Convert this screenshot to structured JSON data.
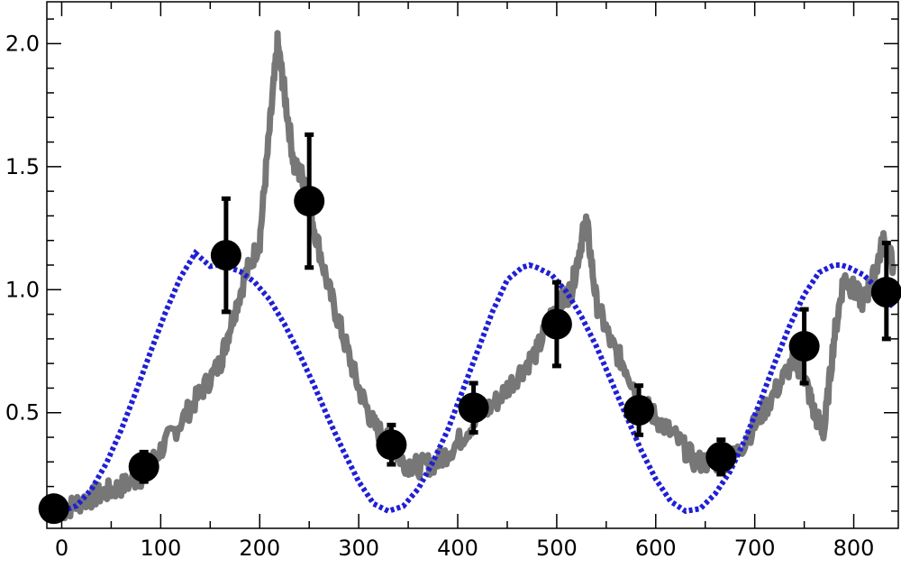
{
  "chart_data": {
    "type": "line",
    "title": "",
    "xlabel": "",
    "ylabel": "",
    "xlim": [
      -15,
      845
    ],
    "ylim": [
      0.03,
      2.17
    ],
    "x_ticks": [
      0,
      100,
      200,
      300,
      400,
      500,
      600,
      700,
      800
    ],
    "x_tick_labels": [
      "0",
      "100",
      "200",
      "300",
      "400",
      "500",
      "600",
      "700",
      "800"
    ],
    "y_ticks": [
      0.5,
      1.0,
      1.5,
      2.0
    ],
    "y_tick_labels": [
      "0.5",
      "1.0",
      "1.5",
      "2.0"
    ],
    "grid": false,
    "series": [
      {
        "kind": "noisy-line",
        "color": "#777777",
        "x": [
          0,
          20,
          40,
          60,
          80,
          100,
          120,
          140,
          160,
          170,
          185,
          200,
          210,
          218,
          225,
          235,
          245,
          255,
          270,
          285,
          300,
          315,
          330,
          345,
          360,
          380,
          400,
          420,
          440,
          460,
          480,
          495,
          505,
          515,
          525,
          530,
          540,
          555,
          570,
          585,
          600,
          620,
          640,
          660,
          680,
          700,
          720,
          740,
          750,
          760,
          770,
          780,
          790,
          800,
          810,
          820,
          830,
          840
        ],
        "y": [
          0.1,
          0.14,
          0.17,
          0.2,
          0.24,
          0.35,
          0.46,
          0.58,
          0.7,
          0.85,
          1.05,
          1.2,
          1.65,
          2.0,
          1.8,
          1.5,
          1.45,
          1.25,
          1.0,
          0.8,
          0.6,
          0.45,
          0.38,
          0.3,
          0.28,
          0.3,
          0.38,
          0.48,
          0.55,
          0.65,
          0.75,
          0.9,
          0.95,
          1.0,
          1.2,
          1.28,
          0.95,
          0.78,
          0.68,
          0.55,
          0.48,
          0.4,
          0.3,
          0.3,
          0.32,
          0.45,
          0.58,
          0.72,
          0.65,
          0.5,
          0.42,
          0.8,
          1.05,
          1.0,
          0.95,
          1.05,
          1.2,
          1.1
        ]
      },
      {
        "kind": "dotted-line",
        "color": "#1f1fd6",
        "x": [
          0,
          15,
          30,
          45,
          60,
          75,
          90,
          105,
          120,
          135,
          150,
          157.5,
          165,
          180,
          195,
          210,
          225,
          240,
          255,
          270,
          285,
          300,
          315,
          330,
          345,
          360,
          375,
          390,
          405,
          420,
          435,
          450,
          465,
          472.5,
          480,
          495,
          510,
          525,
          540,
          555,
          570,
          585,
          600,
          615,
          630,
          645,
          660,
          675,
          690,
          705,
          720,
          735,
          750,
          765,
          780,
          787.5,
          795,
          810,
          825,
          840
        ],
        "y": [
          0.1,
          0.122,
          0.188,
          0.293,
          0.429,
          0.585,
          0.75,
          0.91,
          1.05,
          1.149,
          1.095,
          1.1,
          1.095,
          1.075,
          1.03,
          0.96,
          0.86,
          0.74,
          0.61,
          0.47,
          0.34,
          0.22,
          0.13,
          0.1,
          0.12,
          0.19,
          0.3,
          0.43,
          0.59,
          0.75,
          0.91,
          1.04,
          1.09,
          1.1,
          1.09,
          1.06,
          0.99,
          0.89,
          0.77,
          0.63,
          0.49,
          0.35,
          0.23,
          0.14,
          0.1,
          0.11,
          0.17,
          0.26,
          0.39,
          0.54,
          0.7,
          0.85,
          0.98,
          1.07,
          1.1,
          1.1,
          1.09,
          1.06,
          1.0,
          0.93
        ]
      },
      {
        "kind": "points-with-errors",
        "color": "#000000",
        "x": [
          -8,
          83,
          166,
          250,
          333,
          416,
          500,
          583,
          666,
          750,
          833
        ],
        "y": [
          0.11,
          0.28,
          1.14,
          1.36,
          0.37,
          0.52,
          0.86,
          0.51,
          0.32,
          0.77,
          0.99
        ],
        "err_low": [
          0.11,
          0.22,
          0.91,
          1.09,
          0.29,
          0.42,
          0.69,
          0.41,
          0.25,
          0.62,
          0.8
        ],
        "err_high": [
          0.11,
          0.34,
          1.37,
          1.63,
          0.45,
          0.62,
          1.03,
          0.61,
          0.39,
          0.92,
          1.19
        ]
      }
    ]
  }
}
